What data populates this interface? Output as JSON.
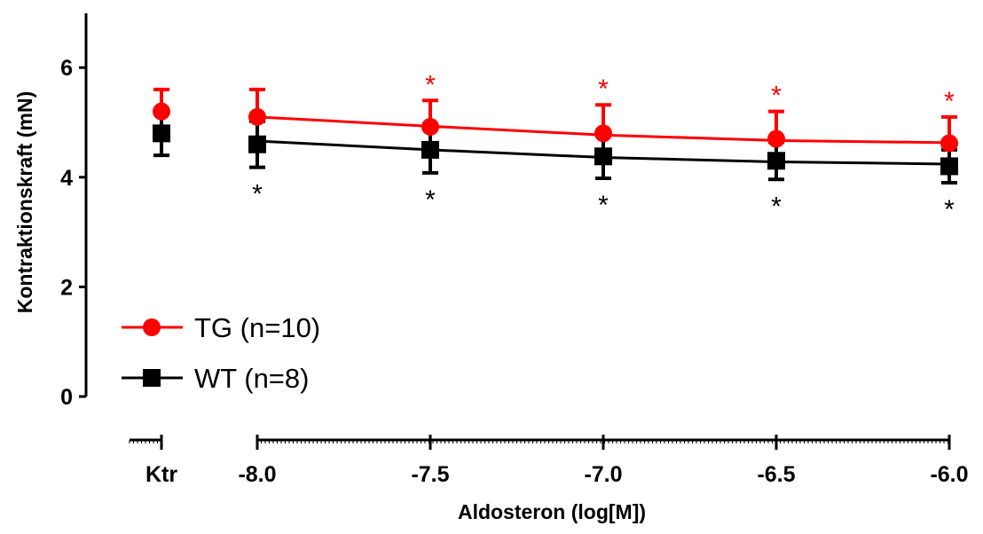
{
  "chart_data": {
    "type": "line",
    "ylabel": "Kontraktionskraft (mN)",
    "xlabel": "Aldosteron (log[M])",
    "ylim": [
      0,
      7
    ],
    "y_ticks": [
      "0",
      "2",
      "4",
      "6"
    ],
    "x_tick_labels": [
      "Ktr",
      "-8.0",
      "-7.5",
      "-7.0",
      "-6.5",
      "-6.0"
    ],
    "legend_position": "lower-left",
    "grid": false,
    "series": [
      {
        "name": "TG (n=10)",
        "color": "#ff0000",
        "marker": "circle",
        "control": {
          "y": 5.2,
          "err": 0.4
        },
        "x": [
          -8.0,
          -7.5,
          -7.0,
          -6.5,
          -6.0
        ],
        "y": [
          5.1,
          4.92,
          4.8,
          4.7,
          4.62
        ],
        "err": [
          0.5,
          0.48,
          0.52,
          0.5,
          0.48
        ],
        "fit": [
          5.1,
          4.93,
          4.77,
          4.67,
          4.63
        ],
        "significance": [
          "",
          "*",
          "*",
          "*",
          "*"
        ]
      },
      {
        "name": "WT (n=8)",
        "color": "#000000",
        "marker": "square",
        "control": {
          "y": 4.8,
          "err": 0.4
        },
        "x": [
          -8.0,
          -7.5,
          -7.0,
          -6.5,
          -6.0
        ],
        "y": [
          4.6,
          4.5,
          4.38,
          4.3,
          4.2
        ],
        "err": [
          0.42,
          0.42,
          0.4,
          0.34,
          0.3
        ],
        "fit": [
          4.66,
          4.5,
          4.36,
          4.28,
          4.24
        ],
        "significance": [
          "*",
          "*",
          "*",
          "*",
          "*"
        ]
      }
    ]
  }
}
